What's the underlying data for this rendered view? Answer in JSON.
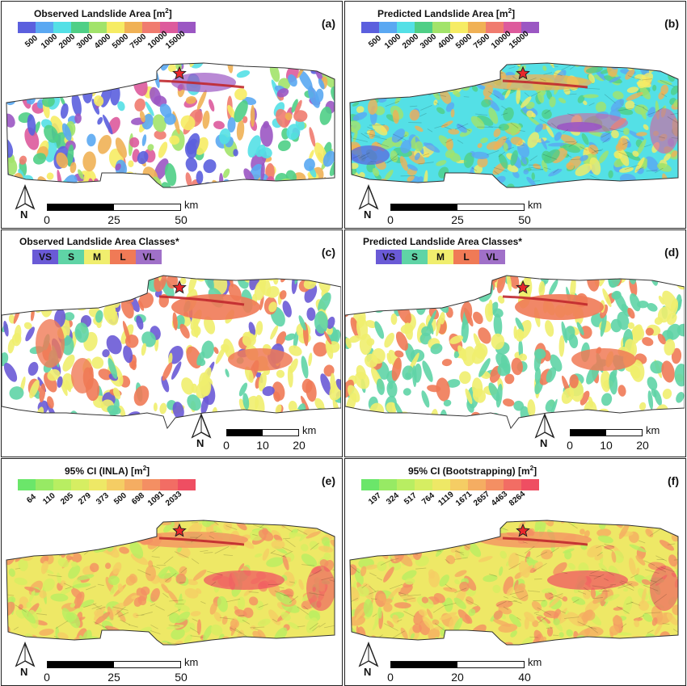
{
  "colors": {
    "area_scale": [
      "#5b5fde",
      "#5aa8f2",
      "#54e0e6",
      "#4fcf86",
      "#a2e36a",
      "#f6ec64",
      "#f0b155",
      "#f07b6f",
      "#dd5a9c",
      "#9b57c3"
    ],
    "class_scale": [
      "#6a5ad6",
      "#5fd4a6",
      "#f0ee6e",
      "#f07a56",
      "#a070c8"
    ],
    "ci_scale": [
      "#6be66a",
      "#97ea64",
      "#b8ee62",
      "#d6ee62",
      "#eee866",
      "#f5cd64",
      "#f5ad62",
      "#f48f63",
      "#f26d64",
      "#ef4e62"
    ],
    "dark_red": "#c0282d"
  },
  "north_label": "N",
  "scale_unit": "km",
  "panels": [
    {
      "id": "a",
      "label": "(a)",
      "title": "Observed Landslide Area [m",
      "title_sup": "2",
      "title_end": "]",
      "legend_type": "area",
      "ticks": [
        "500",
        "1000",
        "2000",
        "3000",
        "4000",
        "5000",
        "7500",
        "10000",
        "15000"
      ],
      "map_style": "observed_area",
      "scale_ticks": [
        "0",
        "25",
        "50"
      ]
    },
    {
      "id": "b",
      "label": "(b)",
      "title": "Predicted Landslide Area [m",
      "title_sup": "2",
      "title_end": "]",
      "legend_type": "area",
      "ticks": [
        "500",
        "1000",
        "2000",
        "3000",
        "4000",
        "5000",
        "7500",
        "10000",
        "15000"
      ],
      "map_style": "predicted_area",
      "scale_ticks": [
        "0",
        "25",
        "50"
      ]
    },
    {
      "id": "c",
      "label": "(c)",
      "title": "Observed Landslide Area Classes*",
      "title_sup": "",
      "title_end": "",
      "legend_type": "classes",
      "classes": [
        "VS",
        "S",
        "M",
        "L",
        "VL"
      ],
      "map_style": "observed_classes",
      "scale_ticks": [
        "0",
        "10",
        "20"
      ]
    },
    {
      "id": "d",
      "label": "(d)",
      "title": "Predicted Landslide Area Classes*",
      "title_sup": "",
      "title_end": "",
      "legend_type": "classes",
      "classes": [
        "VS",
        "S",
        "M",
        "L",
        "VL"
      ],
      "map_style": "predicted_classes",
      "scale_ticks": [
        "0",
        "10",
        "20"
      ]
    },
    {
      "id": "e",
      "label": "(e)",
      "title": "95% CI (INLA) [m",
      "title_sup": "2",
      "title_end": "]",
      "legend_type": "ci",
      "ticks": [
        "64",
        "110",
        "205",
        "279",
        "373",
        "500",
        "698",
        "1091",
        "2033"
      ],
      "map_style": "ci",
      "scale_ticks": [
        "0",
        "25",
        "50"
      ]
    },
    {
      "id": "f",
      "label": "(f)",
      "title": "95% CI (Bootstrapping) [m",
      "title_sup": "2",
      "title_end": "]",
      "legend_type": "ci",
      "ticks": [
        "197",
        "324",
        "517",
        "764",
        "1119",
        "1671",
        "2657",
        "4463",
        "8264"
      ],
      "map_style": "ci",
      "scale_ticks": [
        "0",
        "20",
        "40"
      ]
    }
  ]
}
